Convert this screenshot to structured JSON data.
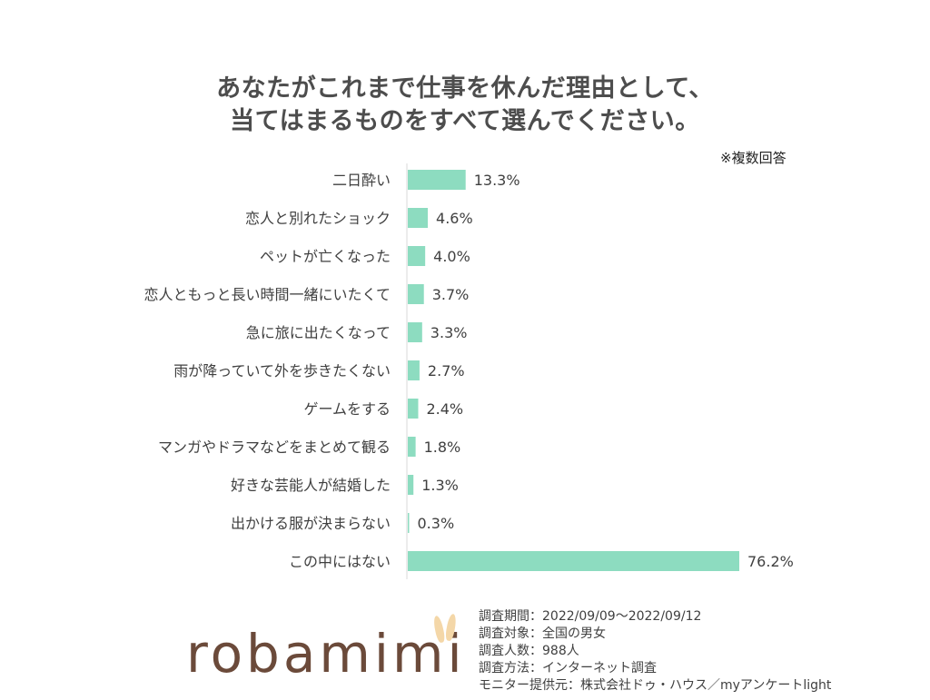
{
  "title": {
    "line1": "あなたがこれまで仕事を休んだ理由として、",
    "line2": "当てはまるものをすべて選んでください。"
  },
  "note": "※複数回答",
  "chart_data": {
    "type": "bar",
    "orientation": "horizontal",
    "categories": [
      "二日酔い",
      "恋人と別れたショック",
      "ペットが亡くなった",
      "恋人ともっと長い時間一緒にいたくて",
      "急に旅に出たくなって",
      "雨が降っていて外を歩きたくない",
      "ゲームをする",
      "マンガやドラマなどをまとめて観る",
      "好きな芸能人が結婚した",
      "出かける服が決まらない",
      "この中にはない"
    ],
    "values": [
      13.3,
      4.6,
      4.0,
      3.7,
      3.3,
      2.7,
      2.4,
      1.8,
      1.3,
      0.3,
      76.2
    ],
    "value_labels": [
      "13.3%",
      "4.6%",
      "4.0%",
      "3.7%",
      "3.3%",
      "2.7%",
      "2.4%",
      "1.8%",
      "1.3%",
      "0.3%",
      "76.2%"
    ],
    "xlim": [
      0,
      76.2
    ],
    "grid": false,
    "bar_color": "#8ddcc0"
  },
  "logo": {
    "text": "robamimi",
    "ear_color": "#f4d7a8",
    "text_color": "#6b4a3a"
  },
  "footer": [
    "調査期間：2022/09/09～2022/09/12",
    "調査対象：全国の男女",
    "調査人数：988人",
    "調査方法：インターネット調査",
    "モニター提供元：株式会社ドゥ・ハウス／myアンケートlight"
  ]
}
